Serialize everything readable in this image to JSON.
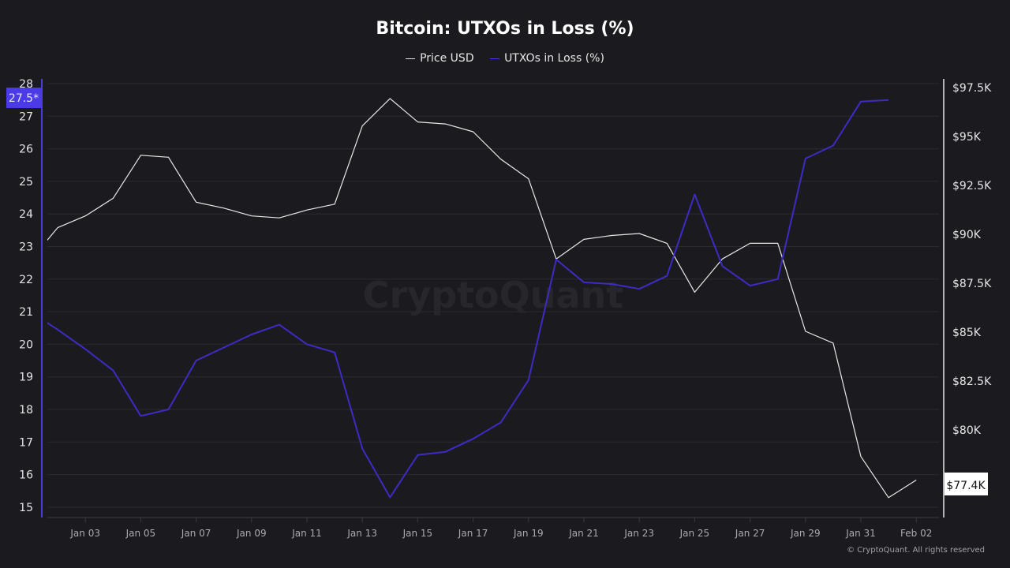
{
  "chart_data": {
    "type": "line",
    "title": "Bitcoin: UTXOs in Loss (%)",
    "x": [
      "Jan 01",
      "Jan 02",
      "Jan 03",
      "Jan 04",
      "Jan 05",
      "Jan 06",
      "Jan 07",
      "Jan 08",
      "Jan 09",
      "Jan 10",
      "Jan 11",
      "Jan 12",
      "Jan 13",
      "Jan 14",
      "Jan 15",
      "Jan 16",
      "Jan 17",
      "Jan 18",
      "Jan 19",
      "Jan 20",
      "Jan 21",
      "Jan 22",
      "Jan 23",
      "Jan 24",
      "Jan 25",
      "Jan 26",
      "Jan 27",
      "Jan 28",
      "Jan 29",
      "Jan 30",
      "Jan 31",
      "Feb 01",
      "Feb 02"
    ],
    "series": [
      {
        "name": "Price USD",
        "axis": "right",
        "color": "#e8e8e8",
        "values": [
          88.6,
          90.3,
          90.9,
          91.8,
          94.0,
          93.9,
          91.6,
          91.3,
          90.9,
          90.8,
          91.2,
          91.5,
          95.5,
          96.9,
          95.7,
          95.6,
          95.2,
          93.8,
          92.8,
          88.7,
          89.7,
          89.9,
          90.0,
          89.5,
          87.0,
          88.7,
          89.5,
          89.5,
          85.0,
          84.4,
          78.6,
          76.5,
          77.4
        ]
      },
      {
        "name": "UTXOs in Loss (%)",
        "axis": "left",
        "color": "#3d2bc4",
        "values": [
          21.0,
          20.45,
          19.85,
          19.2,
          17.8,
          18.0,
          19.5,
          19.9,
          20.3,
          20.6,
          20.0,
          19.75,
          16.8,
          15.3,
          16.6,
          16.7,
          17.1,
          17.6,
          18.9,
          22.6,
          21.9,
          21.85,
          21.7,
          22.1,
          24.6,
          22.4,
          21.8,
          22.0,
          25.7,
          26.1,
          27.45,
          27.5,
          null
        ]
      }
    ],
    "x_tick_labels": [
      "Jan 03",
      "Jan 05",
      "Jan 07",
      "Jan 09",
      "Jan 11",
      "Jan 13",
      "Jan 15",
      "Jan 17",
      "Jan 19",
      "Jan 21",
      "Jan 23",
      "Jan 25",
      "Jan 27",
      "Jan 29",
      "Jan 31",
      "Feb 02"
    ],
    "left_axis": {
      "ylim": [
        15,
        28
      ],
      "ticks": [
        "15",
        "16",
        "17",
        "18",
        "19",
        "20",
        "21",
        "22",
        "23",
        "24",
        "25",
        "26",
        "27",
        "28"
      ]
    },
    "right_axis": {
      "ylim_k": [
        75.8,
        97.7
      ],
      "ticks": [
        "$80K",
        "$82.5K",
        "$85K",
        "$87.5K",
        "$90K",
        "$92.5K",
        "$95K",
        "$97.5K"
      ],
      "tick_values": [
        80,
        82.5,
        85,
        87.5,
        90,
        92.5,
        95,
        97.5
      ]
    },
    "last_value_labels": {
      "left": "27.5*",
      "right": "$77.4K"
    },
    "grid": true,
    "legend_position": "top"
  },
  "watermark": "CryptoQuant",
  "credit": "© CryptoQuant. All rights reserved",
  "colors": {
    "background": "#1b1b1f",
    "utxo": "#3d2bc4",
    "price": "#e8e8e8",
    "left_badge": "#4b3be6"
  }
}
